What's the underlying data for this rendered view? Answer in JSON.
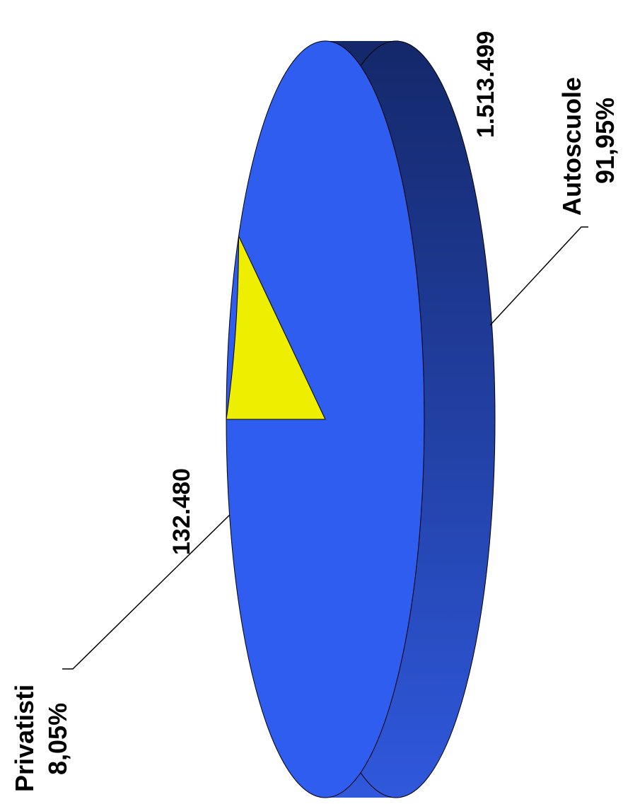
{
  "chart_data": {
    "type": "pie",
    "style": "3d",
    "orientation": "rotated-90-ccw",
    "title": "",
    "categories": [
      "Privatisti",
      "Autoscuole"
    ],
    "values": [
      132480,
      1513499
    ],
    "value_labels": [
      "132.480",
      "1.513.499"
    ],
    "percent_labels": [
      "8,05%",
      "91,95%"
    ],
    "colors": [
      "#eeee00",
      "#2f5df0"
    ],
    "side_color_dark": "#14286a",
    "side_color_light": "#2f58dc",
    "legend": "none",
    "labels_with_leader_lines": true
  }
}
